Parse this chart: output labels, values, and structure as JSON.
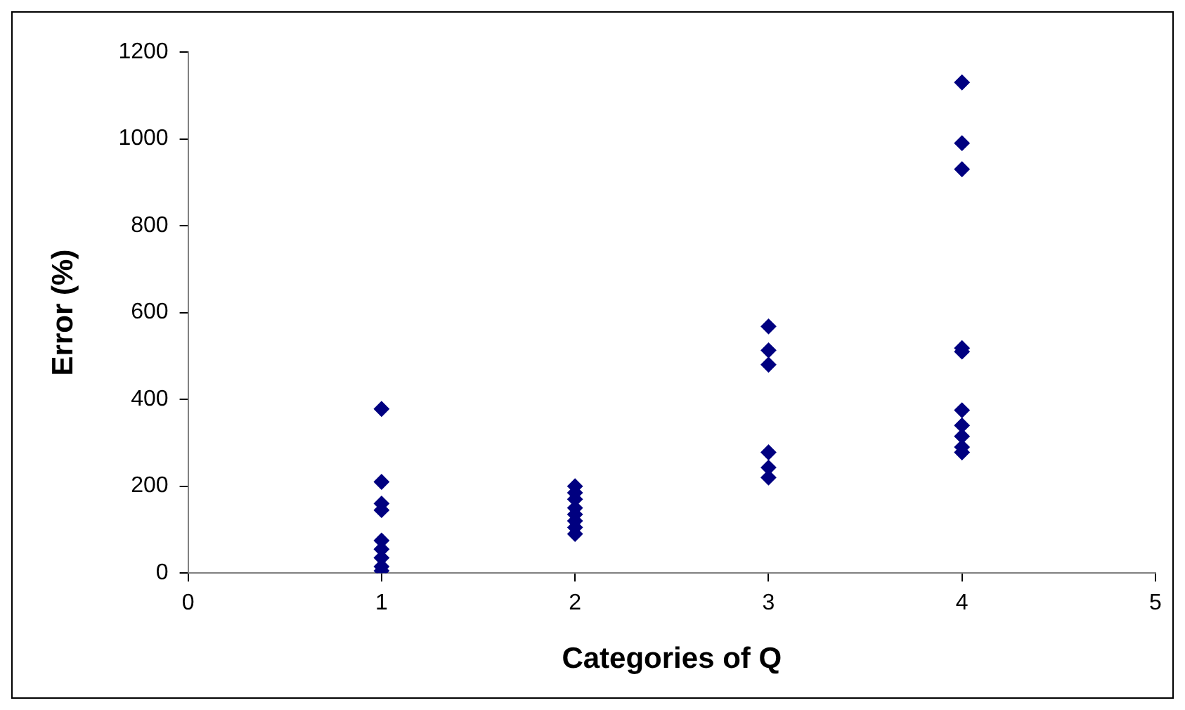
{
  "chart_data": {
    "type": "scatter",
    "xlabel": "Categories of Q",
    "ylabel": "Error (%)",
    "marker": "diamond",
    "grid": false,
    "legend": false,
    "xlim": [
      0,
      5
    ],
    "xticks": [
      0,
      1,
      2,
      3,
      4,
      5
    ],
    "ylim": [
      0,
      1200
    ],
    "yticks": [
      0,
      200,
      400,
      600,
      800,
      1000,
      1200
    ],
    "series": [
      {
        "color": "#000080",
        "x": [
          1,
          1,
          1,
          1,
          1,
          1,
          1,
          1,
          1,
          2,
          2,
          2,
          2,
          2,
          2,
          2,
          2,
          3,
          3,
          3,
          3,
          3,
          3,
          4,
          4,
          4,
          4,
          4,
          4,
          4,
          4,
          4,
          4
        ],
        "values": [
          378,
          210,
          160,
          145,
          75,
          55,
          35,
          15,
          5,
          200,
          185,
          170,
          150,
          135,
          120,
          105,
          90,
          568,
          513,
          480,
          278,
          243,
          220,
          1130,
          990,
          930,
          518,
          510,
          375,
          340,
          315,
          290,
          278
        ]
      }
    ]
  }
}
